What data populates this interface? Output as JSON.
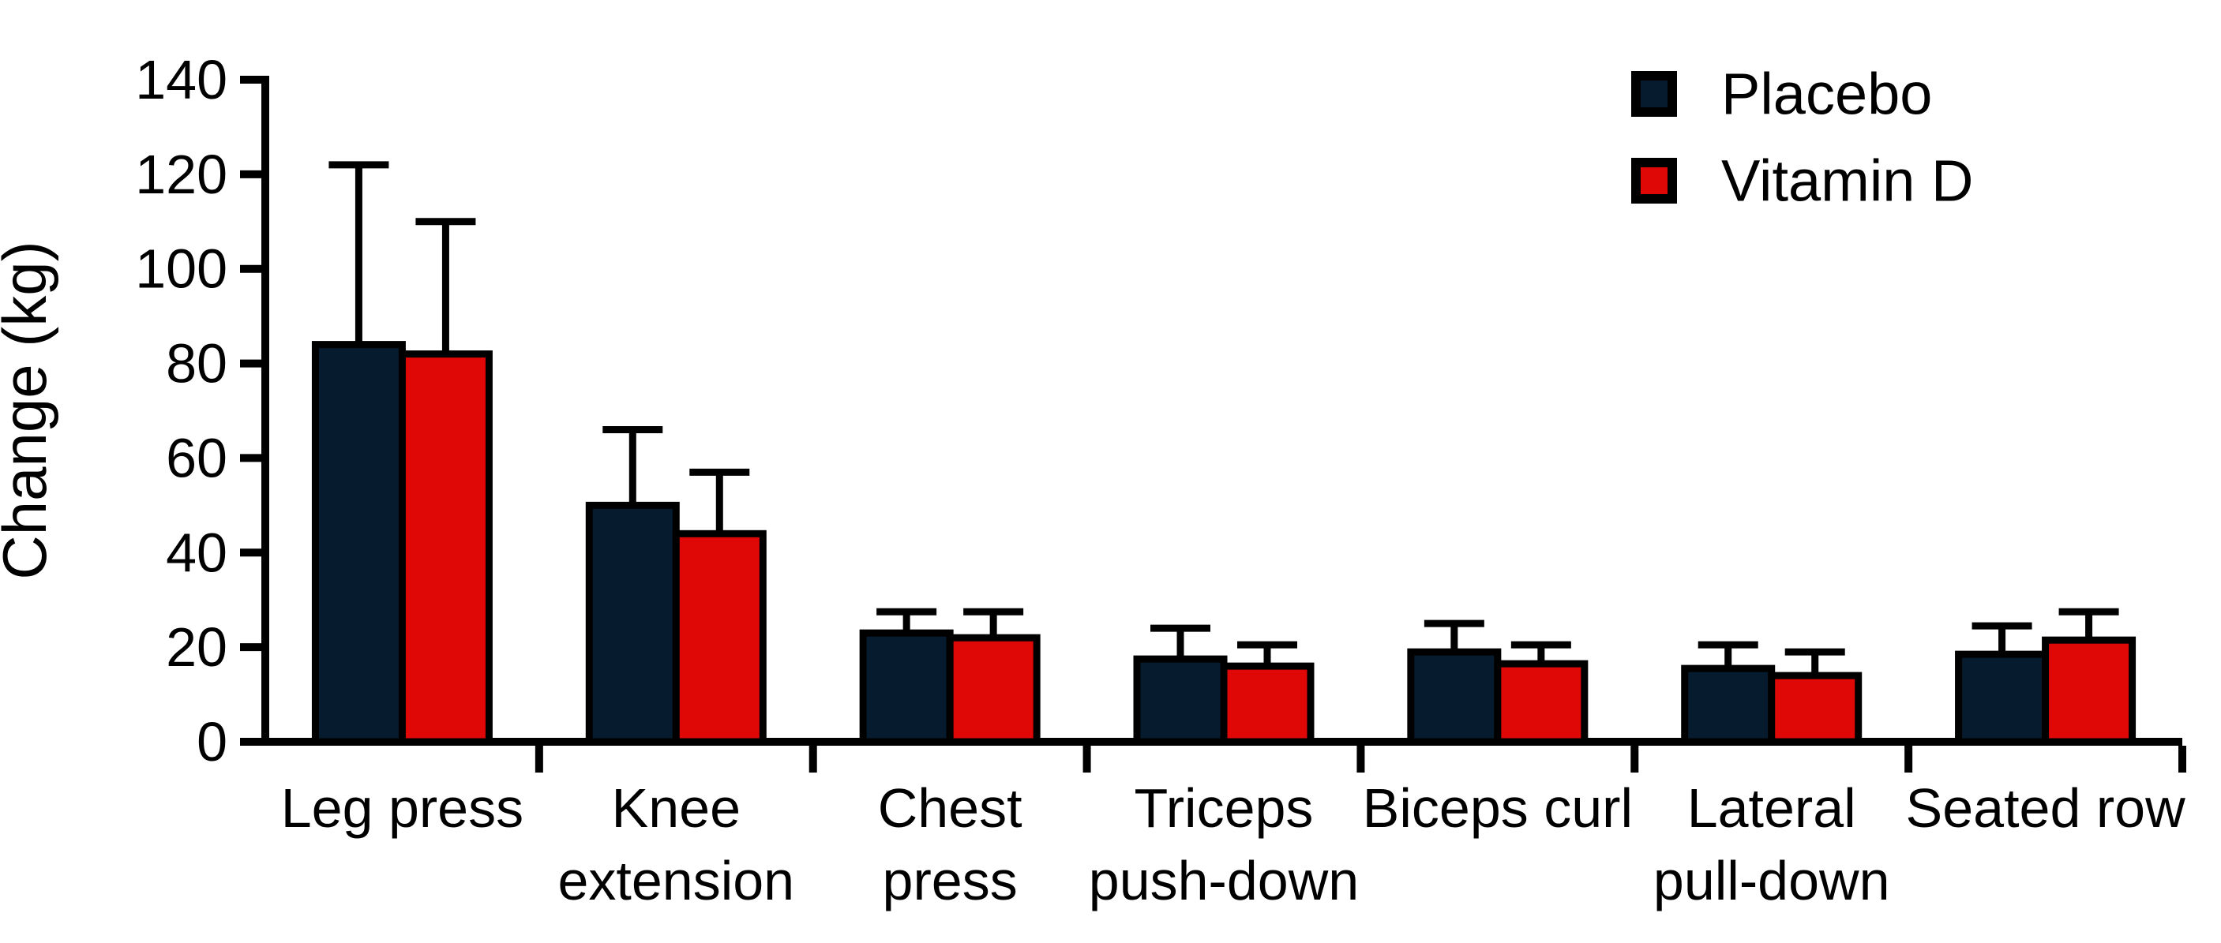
{
  "figure": {
    "background_color": "#ffffff",
    "axis_color": "#000000",
    "text_color": "#000000"
  },
  "legend": {
    "position": "top-right",
    "items": [
      {
        "label": "Placebo",
        "swatch_color": "#061b2e",
        "swatch_border": "#000000"
      },
      {
        "label": "Vitamin D",
        "swatch_color": "#e00707",
        "swatch_border": "#000000"
      }
    ]
  },
  "chart_data": {
    "type": "bar",
    "title": "",
    "xlabel": "",
    "ylabel": "Change (kg)",
    "ylim": [
      0,
      140
    ],
    "ytick_step": 20,
    "ytick_labels": [
      "0",
      "20",
      "40",
      "60",
      "80",
      "100",
      "120",
      "140"
    ],
    "grid": false,
    "legend_position": "top-right",
    "bar_outline_color": "#000000",
    "error_bar_color": "#000000",
    "error_bar_direction": "up",
    "categories": [
      "Leg press",
      "Knee extension",
      "Chest press",
      "Triceps push-down",
      "Biceps curl",
      "Lateral pull-down",
      "Seated row"
    ],
    "category_label_lines": [
      [
        "Leg press"
      ],
      [
        "Knee",
        "extension"
      ],
      [
        "Chest",
        "press"
      ],
      [
        "Triceps",
        "push-down"
      ],
      [
        "Biceps curl"
      ],
      [
        "Lateral",
        "pull-down"
      ],
      [
        "Seated row"
      ]
    ],
    "series": [
      {
        "name": "Placebo",
        "color": "#061b2e",
        "values": [
          84,
          50,
          23,
          17.5,
          19,
          15.5,
          18.5
        ],
        "errors_up": [
          38,
          16,
          4.5,
          6.5,
          6,
          5,
          6
        ]
      },
      {
        "name": "Vitamin D",
        "color": "#e00707",
        "values": [
          82,
          44,
          22,
          16,
          16.5,
          14,
          21.5
        ],
        "errors_up": [
          28,
          13,
          5.5,
          4.5,
          4,
          5,
          6
        ]
      }
    ]
  }
}
